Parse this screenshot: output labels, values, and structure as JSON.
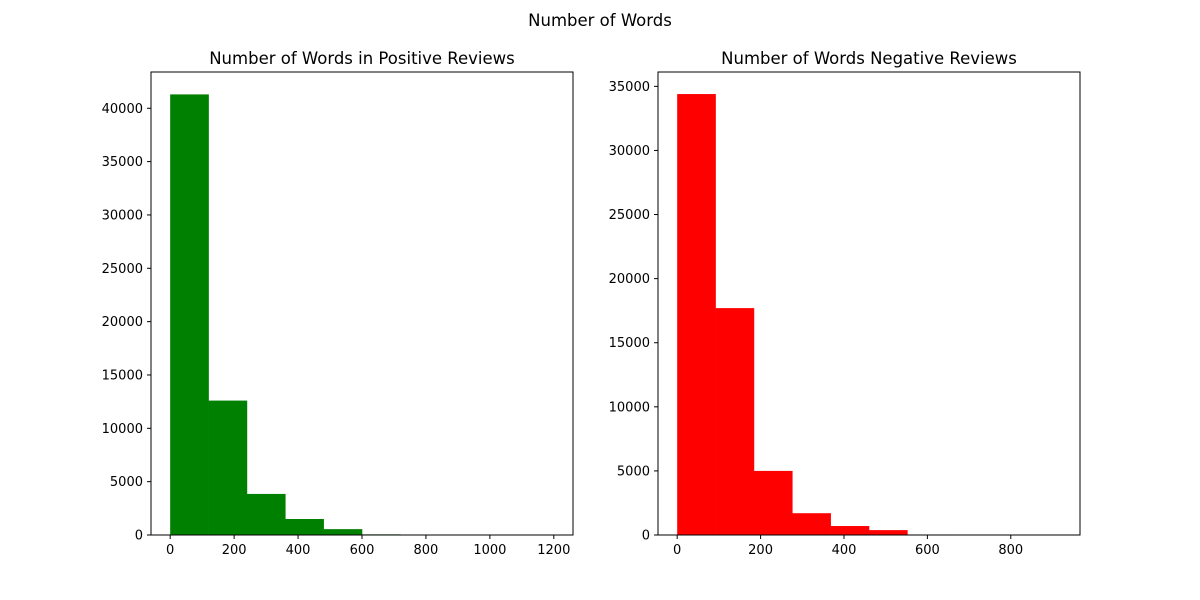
{
  "figure": {
    "suptitle": "Number of Words",
    "background": "#ffffff"
  },
  "chart_data": [
    {
      "type": "bar",
      "subtype": "histogram",
      "title": "Number of Words in Positive Reviews",
      "xlabel": "",
      "ylabel": "",
      "color": "#008000",
      "bin_edges": [
        0,
        120,
        240,
        360,
        480,
        600,
        720,
        840,
        960,
        1080,
        1200
      ],
      "values": [
        41300,
        12600,
        3850,
        1500,
        550,
        60,
        20,
        10,
        5,
        3
      ],
      "xlim": [
        -60,
        1260
      ],
      "ylim": [
        0,
        43400
      ],
      "xticks": [
        0,
        200,
        400,
        600,
        800,
        1000,
        1200
      ],
      "xtick_labels": [
        "0",
        "200",
        "400",
        "600",
        "800",
        "1000",
        "1200"
      ],
      "yticks": [
        0,
        5000,
        10000,
        15000,
        20000,
        25000,
        30000,
        35000,
        40000
      ],
      "ytick_labels": [
        "0",
        "5000",
        "10000",
        "15000",
        "20000",
        "25000",
        "30000",
        "35000",
        "40000"
      ],
      "grid": false,
      "legend": "none"
    },
    {
      "type": "bar",
      "subtype": "histogram",
      "title": "Number of Words Negative Reviews",
      "xlabel": "",
      "ylabel": "",
      "color": "#ff0000",
      "bin_edges": [
        0,
        92,
        184,
        276,
        368,
        460,
        552,
        644,
        736,
        828,
        920
      ],
      "values": [
        34400,
        17700,
        5000,
        1700,
        700,
        380,
        40,
        15,
        8,
        4
      ],
      "xlim": [
        -46,
        966
      ],
      "ylim": [
        0,
        36120
      ],
      "xticks": [
        0,
        200,
        400,
        600,
        800
      ],
      "xtick_labels": [
        "0",
        "200",
        "400",
        "600",
        "800"
      ],
      "yticks": [
        0,
        5000,
        10000,
        15000,
        20000,
        25000,
        30000,
        35000
      ],
      "ytick_labels": [
        "0",
        "5000",
        "10000",
        "15000",
        "20000",
        "25000",
        "30000",
        "35000"
      ],
      "grid": false,
      "legend": "none"
    }
  ]
}
